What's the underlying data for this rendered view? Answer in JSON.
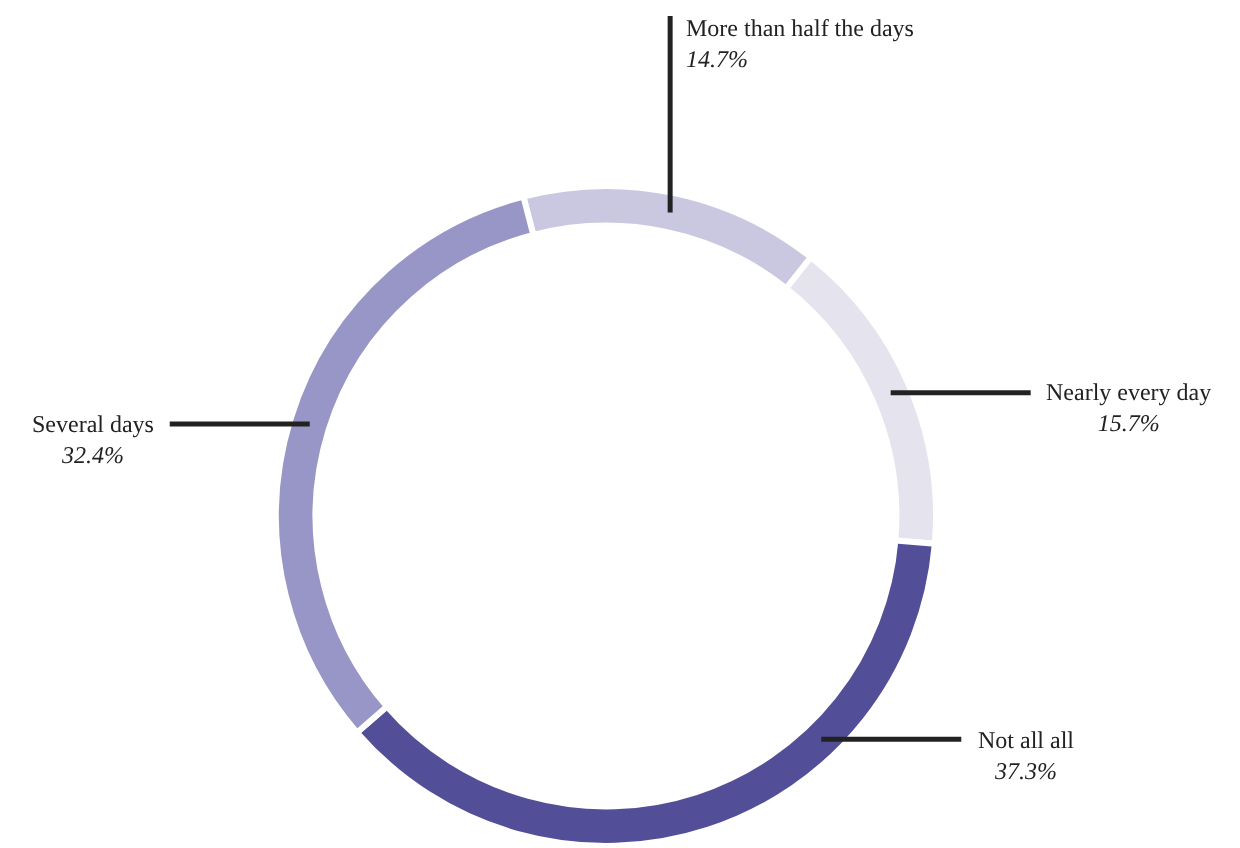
{
  "chart_data": {
    "type": "donut",
    "categories": [
      "More than half the days",
      "Nearly every day",
      "Not all all",
      "Several days"
    ],
    "values": [
      14.7,
      15.7,
      37.3,
      32.4
    ],
    "colors": [
      "#c9c8e0",
      "#e4e3ee",
      "#524f98",
      "#9896c6"
    ],
    "value_labels": [
      "14.7%",
      "15.7%",
      "37.3%",
      "32.4%"
    ],
    "legend": false
  }
}
